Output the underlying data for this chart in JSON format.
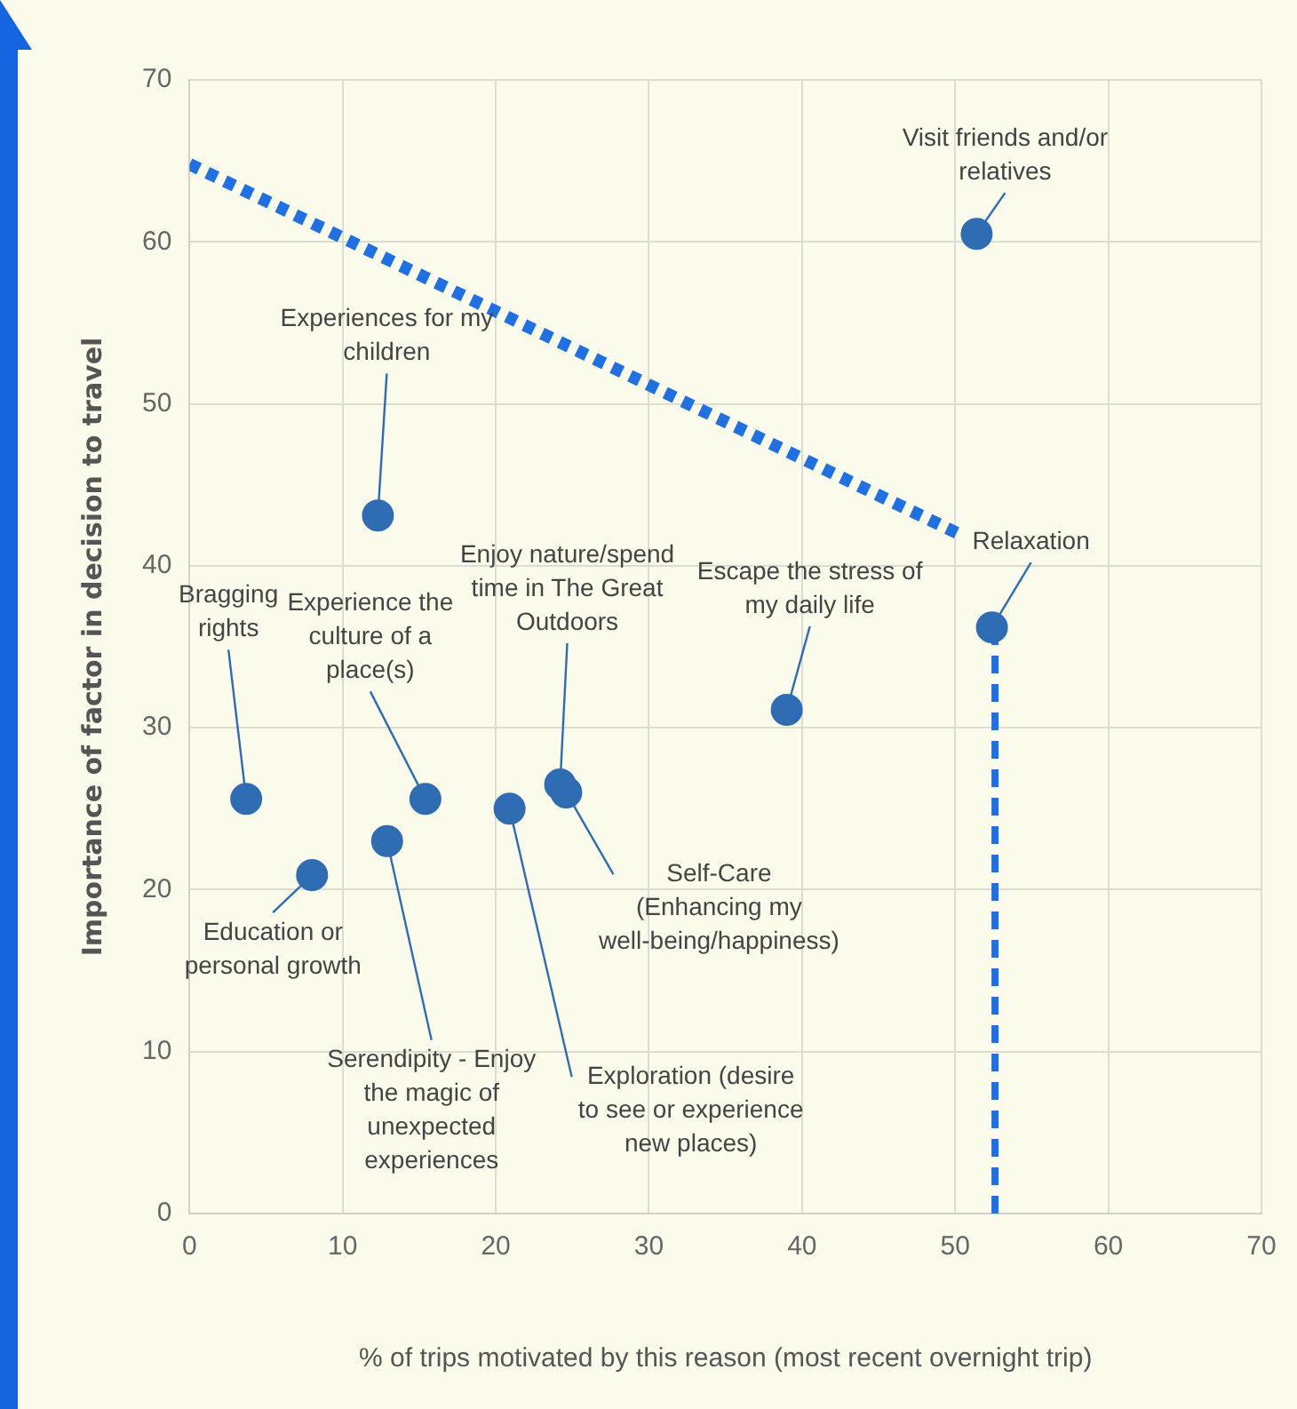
{
  "chart_data": {
    "type": "scatter",
    "xlabel": "% of trips motivated by this reason (most recent overnight trip)",
    "ylabel": "Importance of factor in decision to travel",
    "xlim": [
      0,
      70
    ],
    "ylim": [
      0,
      70
    ],
    "xticks": [
      0,
      10,
      20,
      30,
      40,
      50,
      60,
      70
    ],
    "yticks": [
      0,
      10,
      20,
      30,
      40,
      50,
      60,
      70
    ],
    "grid": true,
    "legend": false,
    "series": [
      {
        "marker": "circle",
        "color": "#2e6db4",
        "x": [
          51.4,
          52.4,
          12.3,
          3.7,
          15.4,
          24.2,
          39.0,
          8.0,
          12.9,
          20.9,
          24.6
        ],
        "values": [
          60.5,
          36.2,
          43.1,
          25.6,
          25.6,
          26.5,
          31.1,
          20.9,
          23.0,
          25.0,
          26.0
        ]
      },
      {
        "type": "line",
        "marker": "none",
        "line_style": "dotted",
        "color": "#1f6fe5",
        "x": [
          0,
          50.4
        ],
        "values": [
          64.8,
          41.9
        ]
      },
      {
        "type": "line",
        "marker": "none",
        "line_style": "dashed",
        "color": "#1f6fe5",
        "x": [
          52.6,
          52.6
        ],
        "values": [
          0,
          36.2
        ]
      }
    ],
    "annotations": [
      {
        "text": "Visit friends and/or relatives",
        "x": 51.4,
        "y": 60.5
      },
      {
        "text": "Relaxation",
        "x": 52.4,
        "y": 36.2
      },
      {
        "text": "Experiences for my children",
        "x": 12.3,
        "y": 43.1
      },
      {
        "text": "Bragging rights",
        "x": 3.7,
        "y": 25.6
      },
      {
        "text": "Experience the culture of a place(s)",
        "x": 15.4,
        "y": 25.6
      },
      {
        "text": "Enjoy nature/spend time in The Great Outdoors",
        "x": 24.2,
        "y": 26.5
      },
      {
        "text": "Escape the stress of my daily life",
        "x": 39.0,
        "y": 31.1
      },
      {
        "text": "Education or personal growth",
        "x": 8.0,
        "y": 20.9
      },
      {
        "text": "Serendipity - Enjoy the magic of unexpected experiences",
        "x": 12.9,
        "y": 23.0
      },
      {
        "text": "Exploration (desire to see or experience new places)",
        "x": 20.9,
        "y": 25.0
      },
      {
        "text": "Self-Care (Enhancing my well-being/happiness)",
        "x": 24.6,
        "y": 26.0
      }
    ]
  }
}
